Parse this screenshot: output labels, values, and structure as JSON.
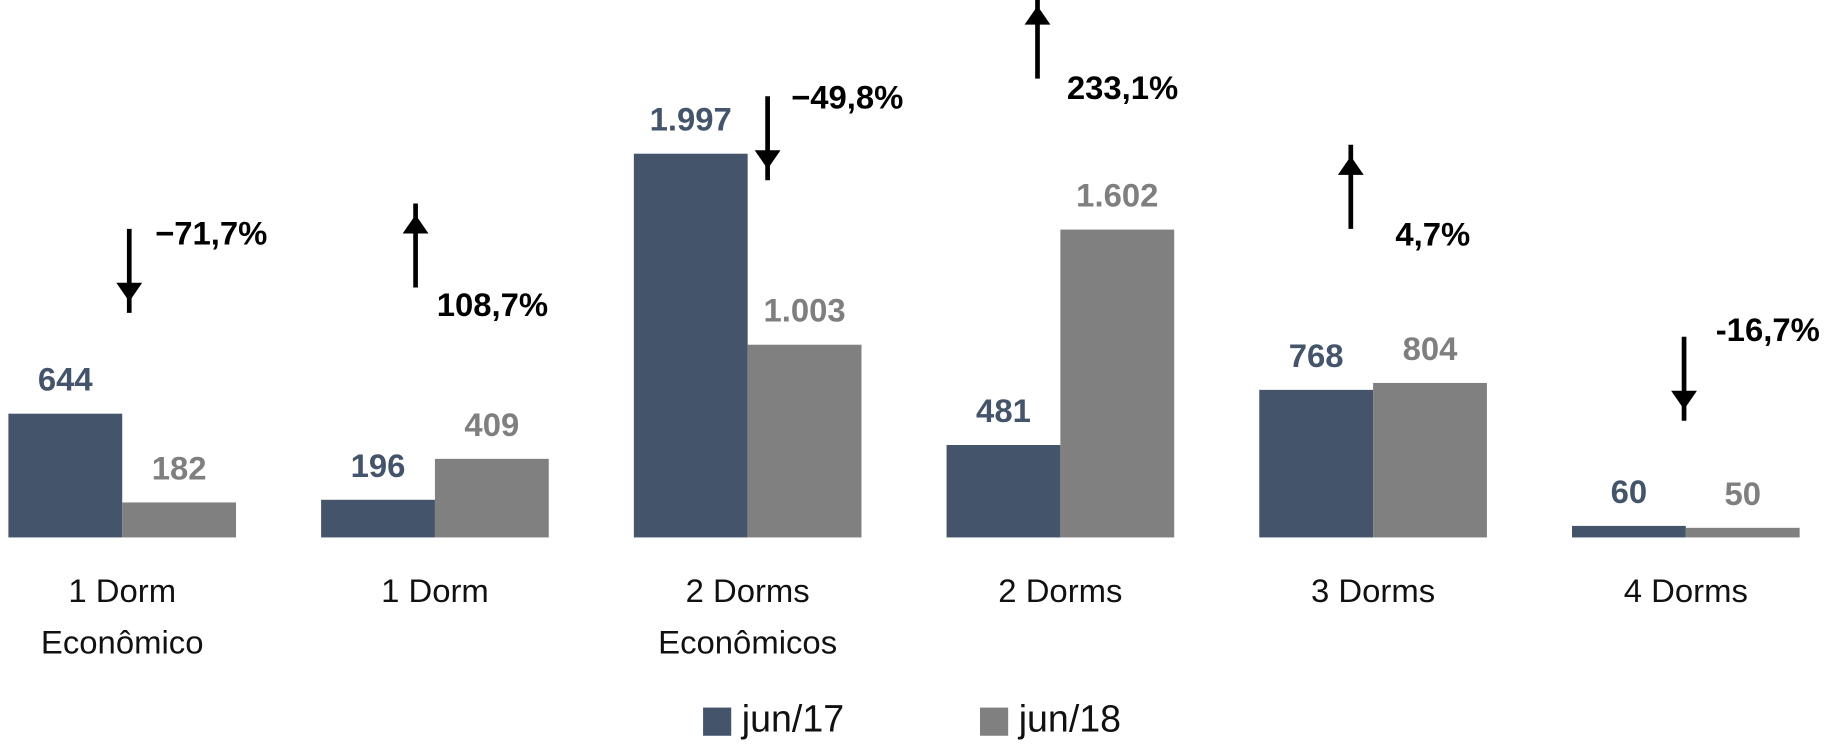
{
  "chart_data": {
    "type": "bar",
    "categories": [
      "1 Dorm\nEconômico",
      "1 Dorm",
      "2 Dorms\nEconômicos",
      "2 Dorms",
      "3 Dorms",
      "4 Dorms"
    ],
    "series": [
      {
        "name": "jun/17",
        "color": "#44546a",
        "values": [
          644,
          196,
          1997,
          481,
          768,
          60
        ],
        "value_labels": [
          "644",
          "196",
          "1.997",
          "481",
          "768",
          "60"
        ]
      },
      {
        "name": "jun/18",
        "color": "#808080",
        "values": [
          182,
          409,
          1003,
          1602,
          804,
          50
        ],
        "value_labels": [
          "182",
          "409",
          "1.003",
          "1.602",
          "804",
          "50"
        ]
      }
    ],
    "annotations": [
      {
        "text": "−71,7%",
        "direction": "down"
      },
      {
        "text": "108,7%",
        "direction": "up"
      },
      {
        "text": "−49,8%",
        "direction": "down"
      },
      {
        "text": "233,1%",
        "direction": "up"
      },
      {
        "text": "4,7%",
        "direction": "up"
      },
      {
        "text": "-16,7%",
        "direction": "down"
      }
    ],
    "legend": "bottom"
  }
}
